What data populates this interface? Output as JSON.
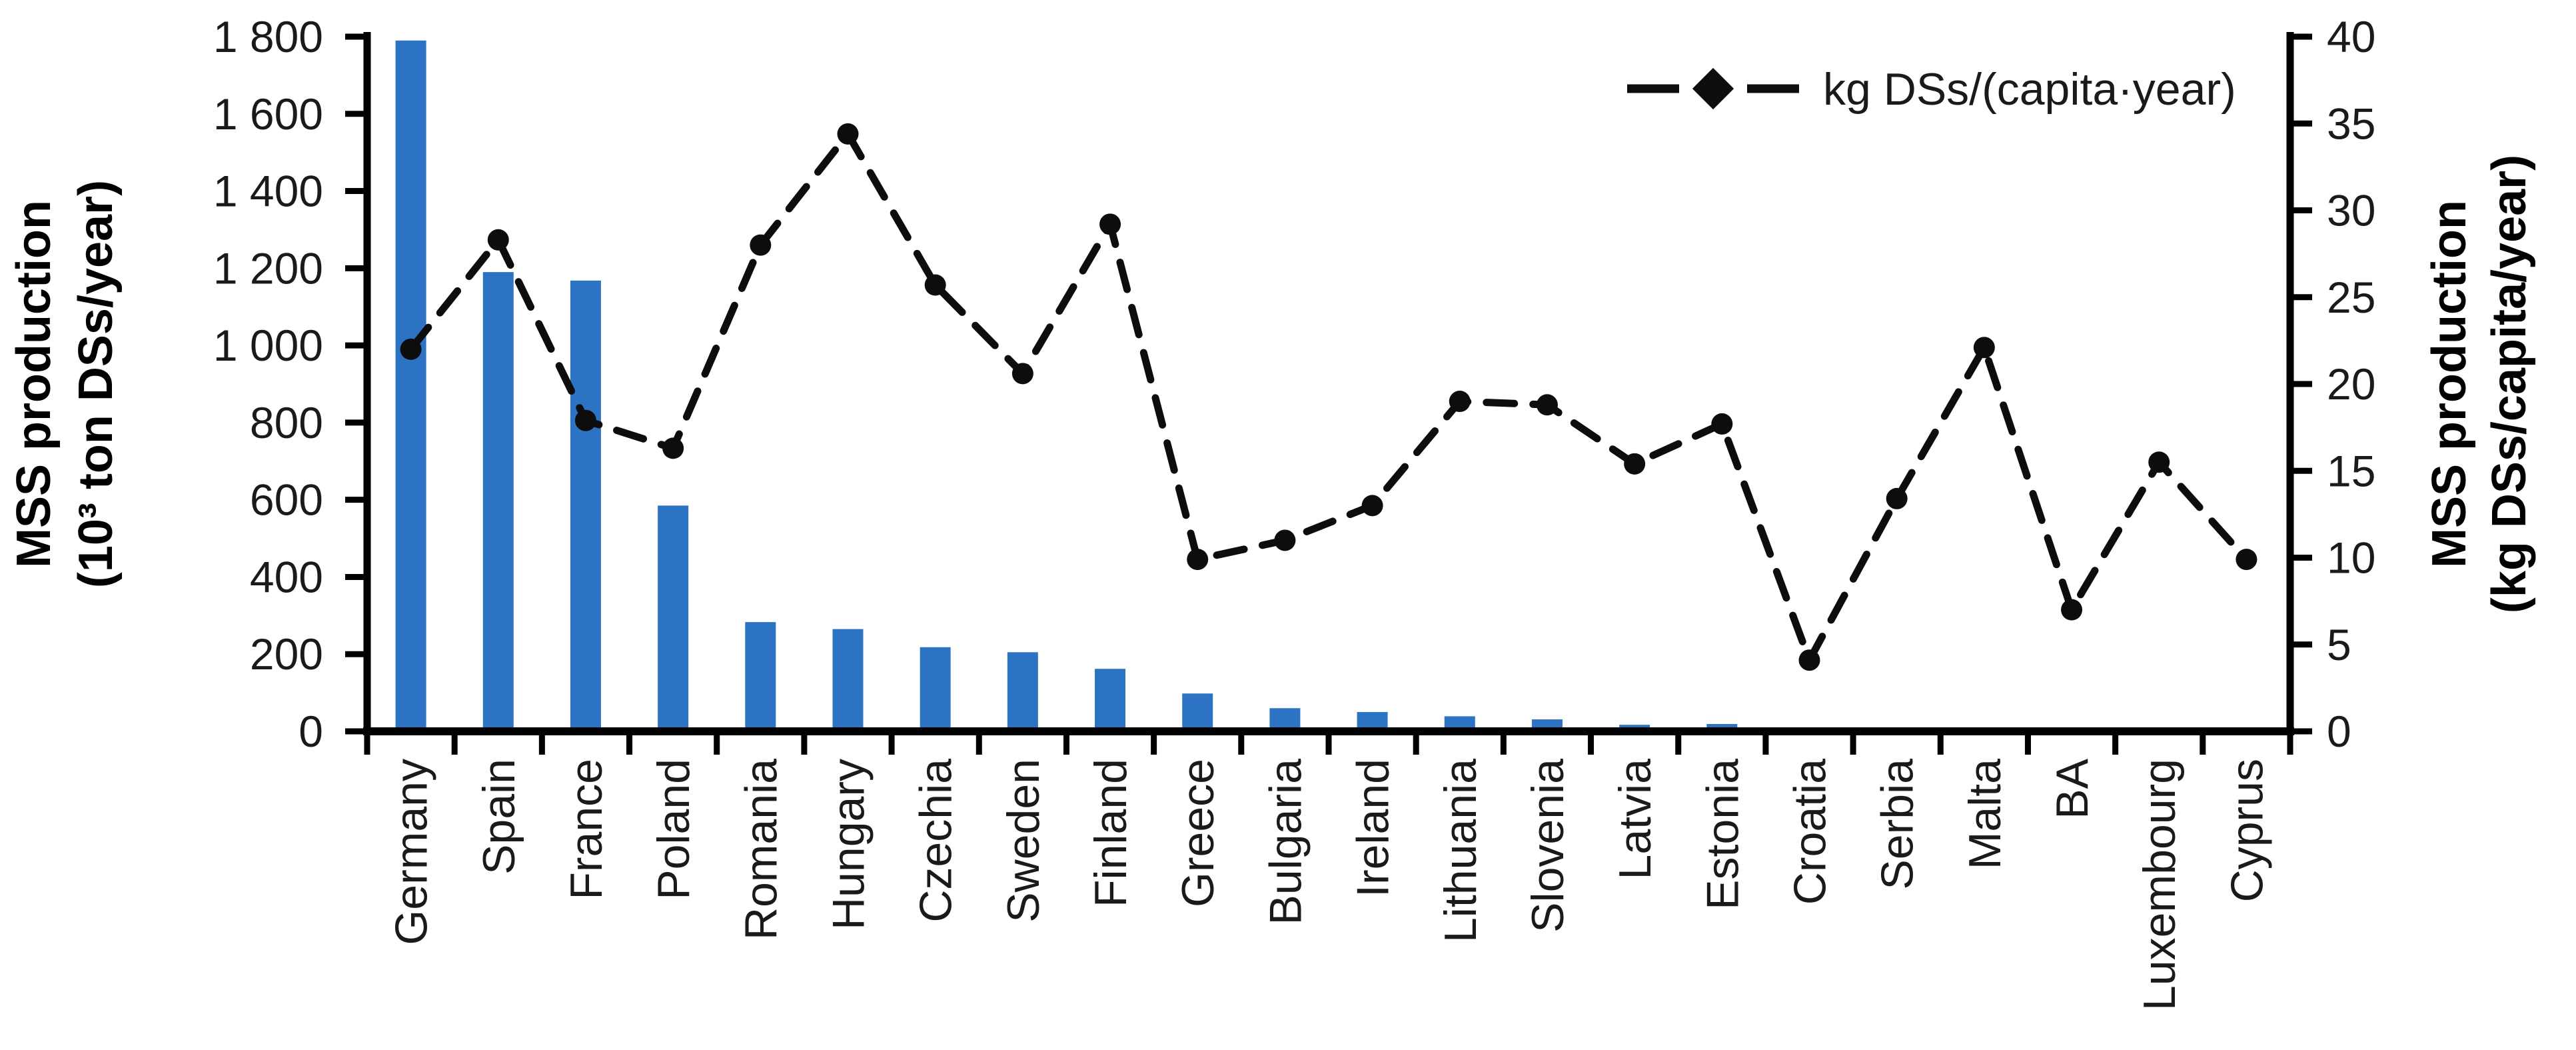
{
  "accent_color": "#2d73c3",
  "line_color": "#0d0d0d",
  "axis_color": "#000000",
  "legend": {
    "label": "kg DSs/(capita·year)"
  },
  "chart_data": {
    "type": "bar+line combo",
    "categories": [
      "Germany",
      "Spain",
      "France",
      "Poland",
      "Romania",
      "Hungary",
      "Czechia",
      "Sweden",
      "Finland",
      "Greece",
      "Bulgaria",
      "Ireland",
      "Lithuania",
      "Slovenia",
      "Latvia",
      "Estonia",
      "Croatia",
      "Serbia",
      "Malta",
      "BA",
      "Luxembourg",
      "Cyprus"
    ],
    "series": [
      {
        "name": "MSS production (10³ ton DSs/year)",
        "type": "bar",
        "axis": "left",
        "color": "#2d73c3",
        "values": [
          1790,
          1190,
          1168,
          585,
          283,
          265,
          218,
          205,
          162,
          98,
          60,
          50,
          39,
          31,
          17,
          19,
          6,
          0,
          0,
          0,
          0,
          0
        ]
      },
      {
        "name": "kg DSs/(capita·year)",
        "type": "line",
        "axis": "right",
        "color": "#0d0d0d",
        "dashed": true,
        "marker": "circle",
        "values": [
          22,
          28.3,
          17.9,
          16.3,
          28,
          34.4,
          25.7,
          20.6,
          29.2,
          9.9,
          11,
          13,
          19,
          18.8,
          15.4,
          17.7,
          4.1,
          13.4,
          22.1,
          7,
          15.5,
          9.9
        ]
      }
    ],
    "left_axis": {
      "title1": "MSS production",
      "title2": "(10³ ton DSs/year)",
      "range": [
        0,
        1800
      ],
      "tick_values": [
        1800,
        1600,
        1400,
        1200,
        1000,
        800,
        600,
        400,
        200,
        0
      ],
      "tick_labels": [
        "1 800",
        "1 600",
        "1 400",
        "1 200",
        "1 000",
        "800",
        "600",
        "400",
        "200",
        "0"
      ]
    },
    "right_axis": {
      "title1": "MSS production",
      "title2": "(kg DSs/capita/year)",
      "range": [
        0,
        40
      ],
      "tick_values": [
        40,
        35,
        30,
        25,
        20,
        15,
        10,
        5,
        0
      ],
      "tick_labels": [
        "40",
        "35",
        "30",
        "25",
        "20",
        "15",
        "10",
        "5",
        "0"
      ]
    },
    "grid": "off",
    "legend_position": "top-right"
  }
}
